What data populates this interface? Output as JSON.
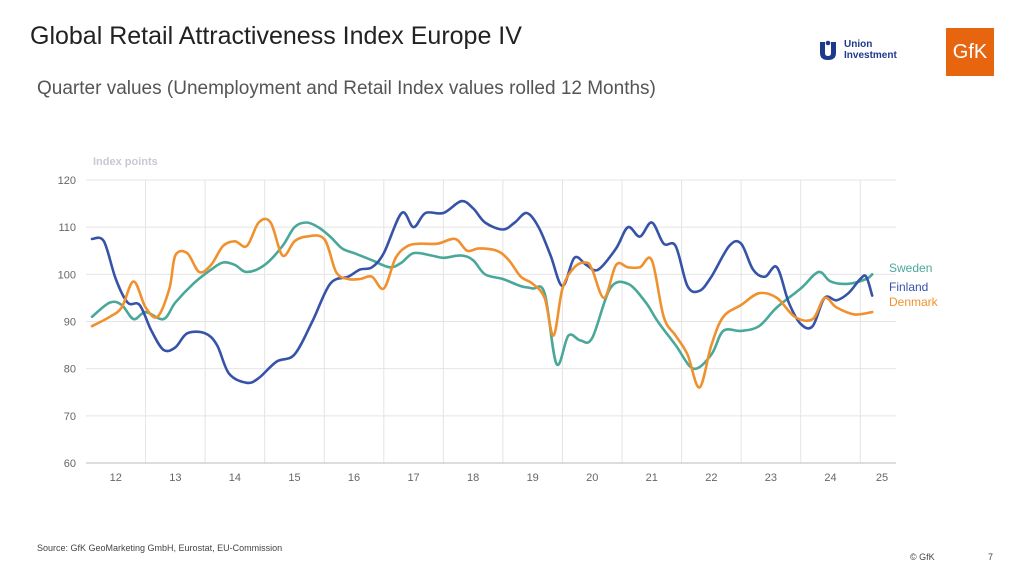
{
  "header": {
    "title": "Global Retail Attractiveness Index Europe IV",
    "subtitle": "Quarter values (Unemployment and Retail Index values rolled 12 Months)"
  },
  "logos": {
    "union_line1": "Union",
    "union_line2": "Investment",
    "gfk": "GfK"
  },
  "footer": {
    "source": "Source: GfK GeoMarketing GmbH, Eurostat, EU-Commission",
    "copyright": "© GfK",
    "page": "7"
  },
  "colors": {
    "sweden": "#4aa89a",
    "finland": "#3653a8",
    "denmark": "#f0912e"
  },
  "chart_data": {
    "type": "line",
    "ylabel": "Index points",
    "ylim": [
      60,
      120
    ],
    "yticks": [
      60,
      70,
      80,
      90,
      100,
      110,
      120
    ],
    "xlim": [
      11.5,
      25.1
    ],
    "xticks": [
      "12",
      "13",
      "14",
      "15",
      "16",
      "17",
      "18",
      "19",
      "20",
      "21",
      "22",
      "23",
      "24",
      "25"
    ],
    "series": [
      {
        "name": "Sweden",
        "points": [
          [
            11.6,
            91
          ],
          [
            11.9,
            94
          ],
          [
            12.1,
            93.5
          ],
          [
            12.3,
            90.5
          ],
          [
            12.5,
            92
          ],
          [
            12.8,
            90.5
          ],
          [
            13.0,
            94
          ],
          [
            13.3,
            98
          ],
          [
            13.6,
            101
          ],
          [
            13.8,
            102.5
          ],
          [
            14.0,
            102
          ],
          [
            14.2,
            100.5
          ],
          [
            14.5,
            102
          ],
          [
            14.8,
            106
          ],
          [
            15.0,
            110
          ],
          [
            15.2,
            111
          ],
          [
            15.4,
            110
          ],
          [
            15.6,
            108
          ],
          [
            15.8,
            105.5
          ],
          [
            16.0,
            104.5
          ],
          [
            16.3,
            103
          ],
          [
            16.6,
            101.5
          ],
          [
            16.8,
            102.5
          ],
          [
            17.0,
            104.5
          ],
          [
            17.3,
            104
          ],
          [
            17.5,
            103.5
          ],
          [
            17.8,
            104
          ],
          [
            18.0,
            103
          ],
          [
            18.2,
            100
          ],
          [
            18.5,
            99
          ],
          [
            18.8,
            97.5
          ],
          [
            19.0,
            97
          ],
          [
            19.2,
            96
          ],
          [
            19.4,
            81
          ],
          [
            19.6,
            87
          ],
          [
            19.8,
            86
          ],
          [
            20.0,
            86.5
          ],
          [
            20.3,
            97
          ],
          [
            20.6,
            98
          ],
          [
            20.9,
            94
          ],
          [
            21.1,
            90
          ],
          [
            21.4,
            85
          ],
          [
            21.7,
            80
          ],
          [
            22.0,
            83
          ],
          [
            22.2,
            88
          ],
          [
            22.5,
            88
          ],
          [
            22.8,
            89
          ],
          [
            23.1,
            93
          ],
          [
            23.5,
            97
          ],
          [
            23.8,
            100.5
          ],
          [
            24.0,
            98.5
          ],
          [
            24.3,
            98
          ],
          [
            24.6,
            99
          ],
          [
            24.7,
            100
          ]
        ]
      },
      {
        "name": "Finland",
        "points": [
          [
            11.6,
            107.5
          ],
          [
            11.8,
            107
          ],
          [
            12.0,
            99
          ],
          [
            12.2,
            94
          ],
          [
            12.4,
            93.5
          ],
          [
            12.6,
            88
          ],
          [
            12.8,
            84
          ],
          [
            13.0,
            84.5
          ],
          [
            13.2,
            87.5
          ],
          [
            13.5,
            87.5
          ],
          [
            13.7,
            85
          ],
          [
            13.9,
            79
          ],
          [
            14.2,
            77
          ],
          [
            14.4,
            78
          ],
          [
            14.7,
            81.5
          ],
          [
            15.0,
            83
          ],
          [
            15.3,
            90
          ],
          [
            15.6,
            98
          ],
          [
            15.9,
            99.5
          ],
          [
            16.1,
            101
          ],
          [
            16.3,
            101.5
          ],
          [
            16.5,
            104.5
          ],
          [
            16.8,
            113
          ],
          [
            17.0,
            110
          ],
          [
            17.2,
            113
          ],
          [
            17.5,
            113
          ],
          [
            17.8,
            115.5
          ],
          [
            18.0,
            114
          ],
          [
            18.2,
            111
          ],
          [
            18.5,
            109.5
          ],
          [
            18.7,
            111
          ],
          [
            18.9,
            113
          ],
          [
            19.1,
            110
          ],
          [
            19.3,
            104
          ],
          [
            19.5,
            97.5
          ],
          [
            19.7,
            103.5
          ],
          [
            19.9,
            102
          ],
          [
            20.1,
            101
          ],
          [
            20.4,
            105.5
          ],
          [
            20.6,
            110
          ],
          [
            20.8,
            108
          ],
          [
            21.0,
            111
          ],
          [
            21.2,
            106.5
          ],
          [
            21.4,
            106
          ],
          [
            21.6,
            97.5
          ],
          [
            21.8,
            96.5
          ],
          [
            22.0,
            99.5
          ],
          [
            22.3,
            106
          ],
          [
            22.5,
            106.5
          ],
          [
            22.7,
            101
          ],
          [
            22.9,
            99.5
          ],
          [
            23.1,
            101.5
          ],
          [
            23.3,
            94
          ],
          [
            23.5,
            89.5
          ],
          [
            23.7,
            89
          ],
          [
            23.9,
            95
          ],
          [
            24.1,
            94.5
          ],
          [
            24.3,
            96
          ],
          [
            24.5,
            99
          ],
          [
            24.6,
            99.5
          ],
          [
            24.7,
            95.5
          ]
        ]
      },
      {
        "name": "Denmark",
        "points": [
          [
            11.6,
            89
          ],
          [
            11.9,
            91
          ],
          [
            12.1,
            93
          ],
          [
            12.3,
            98.5
          ],
          [
            12.5,
            93
          ],
          [
            12.7,
            91
          ],
          [
            12.9,
            97
          ],
          [
            13.0,
            104
          ],
          [
            13.2,
            104.5
          ],
          [
            13.4,
            100.5
          ],
          [
            13.6,
            102
          ],
          [
            13.8,
            106
          ],
          [
            14.0,
            107
          ],
          [
            14.2,
            106
          ],
          [
            14.4,
            111
          ],
          [
            14.6,
            111
          ],
          [
            14.8,
            104
          ],
          [
            15.0,
            107
          ],
          [
            15.2,
            108
          ],
          [
            15.5,
            107.5
          ],
          [
            15.7,
            100.5
          ],
          [
            15.9,
            99
          ],
          [
            16.1,
            99
          ],
          [
            16.3,
            99.5
          ],
          [
            16.5,
            97
          ],
          [
            16.7,
            103.5
          ],
          [
            16.9,
            106
          ],
          [
            17.1,
            106.5
          ],
          [
            17.4,
            106.5
          ],
          [
            17.7,
            107.5
          ],
          [
            17.9,
            105
          ],
          [
            18.1,
            105.5
          ],
          [
            18.4,
            105
          ],
          [
            18.6,
            103
          ],
          [
            18.8,
            99.5
          ],
          [
            19.0,
            98
          ],
          [
            19.2,
            95
          ],
          [
            19.35,
            87
          ],
          [
            19.5,
            97
          ],
          [
            19.7,
            101.5
          ],
          [
            19.9,
            102.5
          ],
          [
            20.0,
            101
          ],
          [
            20.2,
            95
          ],
          [
            20.4,
            102
          ],
          [
            20.6,
            101.5
          ],
          [
            20.8,
            101.5
          ],
          [
            21.0,
            103
          ],
          [
            21.2,
            91
          ],
          [
            21.4,
            87
          ],
          [
            21.6,
            83
          ],
          [
            21.8,
            76
          ],
          [
            22.0,
            85
          ],
          [
            22.2,
            91
          ],
          [
            22.5,
            93.5
          ],
          [
            22.8,
            96
          ],
          [
            23.1,
            95
          ],
          [
            23.4,
            91
          ],
          [
            23.7,
            90.5
          ],
          [
            23.9,
            95
          ],
          [
            24.1,
            93
          ],
          [
            24.4,
            91.5
          ],
          [
            24.7,
            92
          ]
        ]
      }
    ]
  }
}
